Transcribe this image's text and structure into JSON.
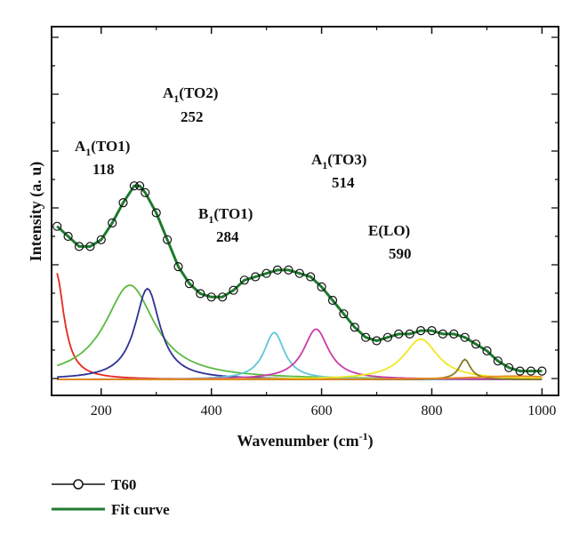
{
  "chart_data": {
    "type": "line",
    "xlabel": "Wavenumber (cm",
    "xlabel_sup": "-1",
    "xlabel_close": ")",
    "ylabel": "Intensity (a. u)",
    "xlim": [
      110,
      1030
    ],
    "ylim": [
      0,
      1.0
    ],
    "x_ticks": [
      200,
      400,
      600,
      800,
      1000
    ],
    "y_ticks_labeled": false,
    "grid": false,
    "legend_position": "bottom-left",
    "series": [
      {
        "name": "T60",
        "style": "line-with-open-circles",
        "color": "#111111",
        "x": [
          120,
          140,
          160,
          180,
          200,
          220,
          240,
          260,
          270,
          280,
          300,
          320,
          340,
          360,
          380,
          400,
          420,
          440,
          460,
          480,
          500,
          520,
          540,
          560,
          580,
          600,
          620,
          640,
          660,
          680,
          700,
          720,
          740,
          760,
          780,
          800,
          820,
          840,
          860,
          880,
          900,
          920,
          940,
          960,
          980,
          1000
        ],
        "y": [
          0.46,
          0.43,
          0.4,
          0.4,
          0.42,
          0.47,
          0.53,
          0.58,
          0.58,
          0.56,
          0.5,
          0.42,
          0.34,
          0.29,
          0.26,
          0.25,
          0.25,
          0.27,
          0.3,
          0.31,
          0.32,
          0.33,
          0.33,
          0.32,
          0.31,
          0.28,
          0.24,
          0.2,
          0.16,
          0.13,
          0.12,
          0.13,
          0.14,
          0.14,
          0.15,
          0.15,
          0.14,
          0.14,
          0.13,
          0.11,
          0.09,
          0.06,
          0.04,
          0.03,
          0.03,
          0.03
        ]
      },
      {
        "name": "Fit curve",
        "color": "#1e7a2e",
        "x": [
          120,
          140,
          160,
          180,
          200,
          220,
          240,
          260,
          270,
          280,
          300,
          320,
          340,
          360,
          380,
          400,
          420,
          440,
          460,
          480,
          500,
          520,
          540,
          560,
          580,
          600,
          620,
          640,
          660,
          680,
          700,
          720,
          740,
          760,
          780,
          800,
          820,
          840,
          860,
          880,
          900,
          920,
          940,
          960,
          980,
          1000
        ],
        "y": [
          0.46,
          0.43,
          0.4,
          0.4,
          0.42,
          0.47,
          0.53,
          0.58,
          0.58,
          0.56,
          0.5,
          0.42,
          0.34,
          0.29,
          0.26,
          0.25,
          0.25,
          0.27,
          0.3,
          0.31,
          0.32,
          0.33,
          0.33,
          0.32,
          0.31,
          0.28,
          0.24,
          0.2,
          0.16,
          0.13,
          0.12,
          0.13,
          0.14,
          0.14,
          0.15,
          0.15,
          0.14,
          0.14,
          0.13,
          0.11,
          0.09,
          0.06,
          0.04,
          0.03,
          0.03,
          0.03
        ]
      }
    ],
    "components": [
      {
        "color": "#e8281e",
        "center": 118,
        "width": 35,
        "height": 0.32
      },
      {
        "color": "#5cb940",
        "center": 252,
        "width": 110,
        "height": 0.28
      },
      {
        "color": "#2e3193",
        "center": 284,
        "width": 55,
        "height": 0.27
      },
      {
        "color": "#5ec8d8",
        "center": 514,
        "width": 45,
        "height": 0.14
      },
      {
        "color": "#c83ca8",
        "center": 590,
        "width": 55,
        "height": 0.15
      },
      {
        "color": "#f0e820",
        "center": 780,
        "width": 75,
        "height": 0.12
      },
      {
        "color": "#8a7a20",
        "center": 860,
        "width": 25,
        "height": 0.06
      },
      {
        "color": "#e88a20",
        "center": 950,
        "width": 200,
        "height": 0.01
      }
    ],
    "annotations": [
      {
        "main": "A",
        "sub": "1",
        "suffix": "(TO1)",
        "value": "118"
      },
      {
        "main": "A",
        "sub": "1",
        "suffix": "(TO2)",
        "value": "252"
      },
      {
        "main": "B",
        "sub": "1",
        "suffix": "(TO1)",
        "value": "284"
      },
      {
        "main": "A",
        "sub": "1",
        "suffix": "(TO3)",
        "value": "514"
      },
      {
        "main": "",
        "sub": "",
        "suffix": "E(LO)",
        "value": "590"
      }
    ]
  },
  "legend": {
    "items": [
      {
        "label": "T60"
      },
      {
        "label": "Fit curve"
      }
    ]
  }
}
